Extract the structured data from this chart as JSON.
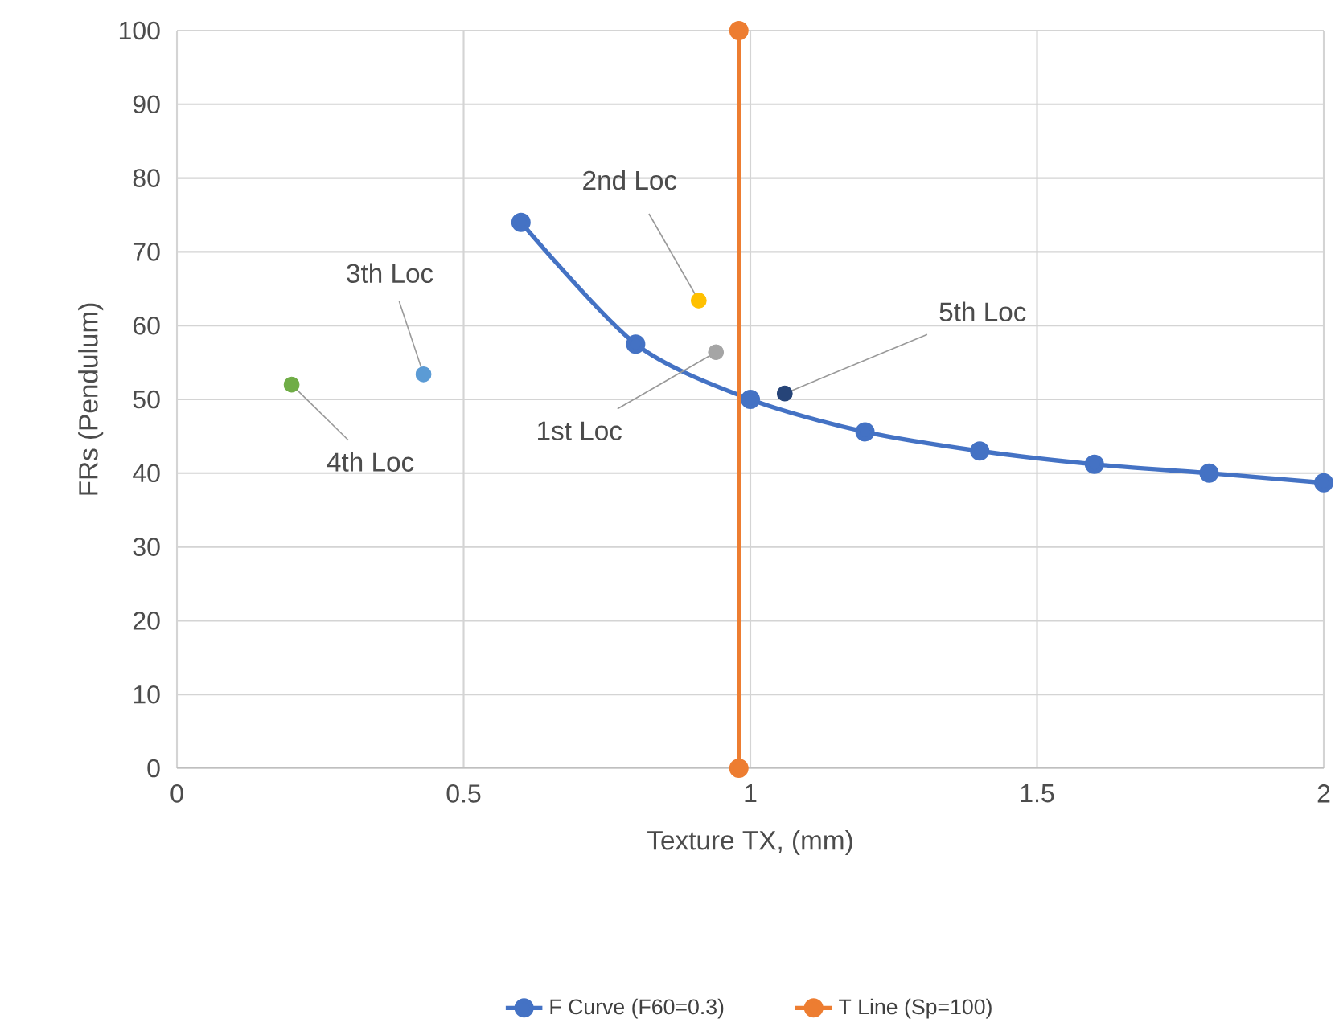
{
  "chart_data": {
    "type": "line",
    "xlabel": "Texture TX, (mm)",
    "ylabel": "FRs (Pendulum)",
    "xlim": [
      0,
      2
    ],
    "ylim": [
      0,
      100
    ],
    "xticks": [
      0,
      0.5,
      1,
      1.5,
      2
    ],
    "yticks": [
      0,
      10,
      20,
      30,
      40,
      50,
      60,
      70,
      80,
      90,
      100
    ],
    "grid": true,
    "legend": "bottom",
    "marker": "circle",
    "series": [
      {
        "name": "F Curve (F60=0.3)",
        "color": "#4472c4",
        "x": [
          0.6,
          0.8,
          1.0,
          1.2,
          1.4,
          1.6,
          1.8,
          2.0
        ],
        "values": [
          74,
          57.5,
          50,
          45.6,
          43,
          41.2,
          40,
          38.7
        ]
      },
      {
        "name": "T Line (Sp=100)",
        "color": "#ed7d31",
        "x": [
          0.98,
          0.98
        ],
        "values": [
          0,
          100
        ]
      },
      {
        "name": "1st Loc",
        "color": "#a5a5a5",
        "type": "scatter",
        "x": [
          0.94
        ],
        "values": [
          56.4
        ]
      },
      {
        "name": "2nd Loc",
        "color": "#ffc000",
        "type": "scatter",
        "x": [
          0.91
        ],
        "values": [
          63.4
        ]
      },
      {
        "name": "3th Loc",
        "color": "#5b9bd5",
        "type": "scatter",
        "x": [
          0.43
        ],
        "values": [
          53.4
        ]
      },
      {
        "name": "4th Loc",
        "color": "#70ad47",
        "type": "scatter",
        "x": [
          0.2
        ],
        "values": [
          52
        ]
      },
      {
        "name": "5th Loc",
        "color": "#264478",
        "type": "scatter",
        "x": [
          1.06
        ],
        "values": [
          50.8
        ]
      }
    ]
  }
}
